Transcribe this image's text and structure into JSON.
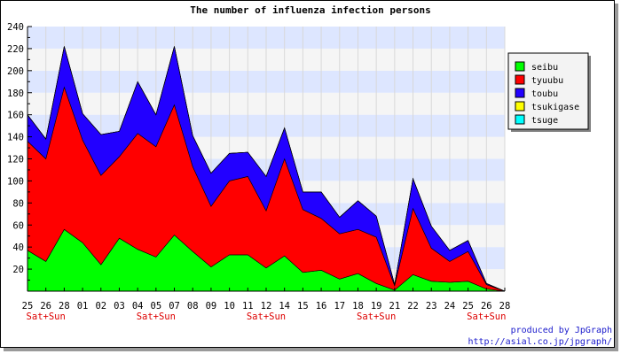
{
  "chart_data": {
    "type": "area",
    "stacked": true,
    "title": "The number of influenza infection persons",
    "xlabel": "",
    "ylabel": "",
    "ylim": [
      0,
      240
    ],
    "yticks": [
      20,
      40,
      60,
      80,
      100,
      120,
      140,
      160,
      180,
      200,
      220,
      240
    ],
    "categories": [
      "25",
      "26",
      "28",
      "01",
      "02",
      "03",
      "04",
      "05",
      "07",
      "08",
      "09",
      "10",
      "11",
      "12",
      "14",
      "15",
      "16",
      "17",
      "18",
      "19",
      "21",
      "22",
      "23",
      "24",
      "25",
      "26",
      "28"
    ],
    "weekend_marker": "Sat+Sun",
    "weekend_indices": [
      1,
      7,
      13,
      19,
      25
    ],
    "grid": true,
    "legend_position": "top-right",
    "series": [
      {
        "name": "seibu",
        "color": "#00ff00",
        "values": [
          37,
          27,
          56,
          44,
          24,
          48,
          38,
          31,
          51,
          36,
          22,
          33,
          33,
          21,
          32,
          17,
          19,
          11,
          16,
          7,
          1,
          15,
          9,
          8,
          9,
          2,
          0
        ]
      },
      {
        "name": "tyuubu",
        "color": "#ff0000",
        "values": [
          99,
          93,
          129,
          93,
          81,
          74,
          105,
          100,
          118,
          77,
          55,
          67,
          71,
          52,
          88,
          57,
          47,
          41,
          40,
          42,
          4,
          60,
          30,
          19,
          27,
          4,
          0
        ]
      },
      {
        "name": "toubu",
        "color": "#2200ff",
        "values": [
          24,
          18,
          37,
          24,
          37,
          23,
          47,
          29,
          53,
          28,
          30,
          25,
          22,
          31,
          28,
          16,
          24,
          15,
          26,
          19,
          1,
          27,
          20,
          10,
          10,
          1,
          0
        ]
      },
      {
        "name": "tsukigase",
        "color": "#ffff00",
        "values": [
          0,
          0,
          0,
          0,
          0,
          0,
          0,
          0,
          0,
          0,
          0,
          0,
          0,
          0,
          0,
          0,
          0,
          0,
          0,
          0,
          0,
          0,
          0,
          0,
          0,
          0,
          0
        ]
      },
      {
        "name": "tsuge",
        "color": "#00ffff",
        "values": [
          0,
          0,
          0,
          0,
          0,
          0,
          0,
          0,
          0,
          0,
          0,
          0,
          0,
          0,
          0,
          0,
          0,
          0,
          0,
          0,
          0,
          0,
          0,
          0,
          0,
          0,
          0
        ]
      }
    ]
  },
  "footer": {
    "line1": "produced by JpGraph",
    "line2": "http://asial.co.jp/jpgraph/"
  }
}
